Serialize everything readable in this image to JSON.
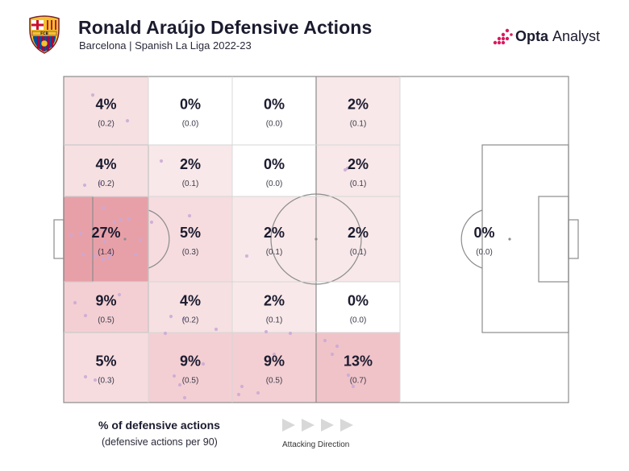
{
  "header": {
    "title": "Ronald Araújo Defensive Actions",
    "subtitle": "Barcelona | Spanish La Liga 2022-23",
    "crest_text": "FCB",
    "brand_bold": "Opta",
    "brand_light": "Analyst"
  },
  "legend": {
    "title": "% of defensive actions",
    "subtitle": "(defensive actions per 90)",
    "direction_label": "Attacking Direction"
  },
  "colors": {
    "heat_max": "#e8a0a8",
    "heat_min": "#fbf4f4",
    "dot": "#c9a9d6",
    "line": "#8c8c8c"
  },
  "chart_data": {
    "type": "heatmap",
    "title": "Ronald Araújo Defensive Actions",
    "subtitle": "Barcelona | Spanish La Liga 2022-23",
    "metric": "% of defensive actions",
    "secondary_metric": "defensive actions per 90",
    "attacking_direction": "right",
    "cells": [
      {
        "zone": "left-r1-c1",
        "pct": "4%",
        "per90": "(0.2)",
        "value": 4
      },
      {
        "zone": "left-r1-c2",
        "pct": "0%",
        "per90": "(0.0)",
        "value": 0
      },
      {
        "zone": "left-r1-c3",
        "pct": "0%",
        "per90": "(0.0)",
        "value": 0
      },
      {
        "zone": "left-r1-c4",
        "pct": "2%",
        "per90": "(0.1)",
        "value": 2
      },
      {
        "zone": "left-r2-c1",
        "pct": "4%",
        "per90": "(0.2)",
        "value": 4
      },
      {
        "zone": "left-r2-c2",
        "pct": "2%",
        "per90": "(0.1)",
        "value": 2
      },
      {
        "zone": "left-r2-c3",
        "pct": "0%",
        "per90": "(0.0)",
        "value": 0
      },
      {
        "zone": "left-r2-c4",
        "pct": "2%",
        "per90": "(0.1)",
        "value": 2
      },
      {
        "zone": "left-r3-c1",
        "pct": "27%",
        "per90": "(1.4)",
        "value": 27
      },
      {
        "zone": "left-r3-c2",
        "pct": "5%",
        "per90": "(0.3)",
        "value": 5
      },
      {
        "zone": "left-r3-c3",
        "pct": "2%",
        "per90": "(0.1)",
        "value": 2
      },
      {
        "zone": "left-r3-c4",
        "pct": "2%",
        "per90": "(0.1)",
        "value": 2
      },
      {
        "zone": "left-r4-c1",
        "pct": "9%",
        "per90": "(0.5)",
        "value": 9
      },
      {
        "zone": "left-r4-c2",
        "pct": "4%",
        "per90": "(0.2)",
        "value": 4
      },
      {
        "zone": "left-r4-c3",
        "pct": "2%",
        "per90": "(0.1)",
        "value": 2
      },
      {
        "zone": "left-r4-c4",
        "pct": "0%",
        "per90": "(0.0)",
        "value": 0
      },
      {
        "zone": "left-r5-c1",
        "pct": "5%",
        "per90": "(0.3)",
        "value": 5
      },
      {
        "zone": "left-r5-c2",
        "pct": "9%",
        "per90": "(0.5)",
        "value": 9
      },
      {
        "zone": "left-r5-c3",
        "pct": "9%",
        "per90": "(0.5)",
        "value": 9
      },
      {
        "zone": "left-r5-c4",
        "pct": "13%",
        "per90": "(0.7)",
        "value": 13
      },
      {
        "zone": "right-half",
        "pct": "0%",
        "per90": "(0.0)",
        "value": 0
      }
    ]
  }
}
